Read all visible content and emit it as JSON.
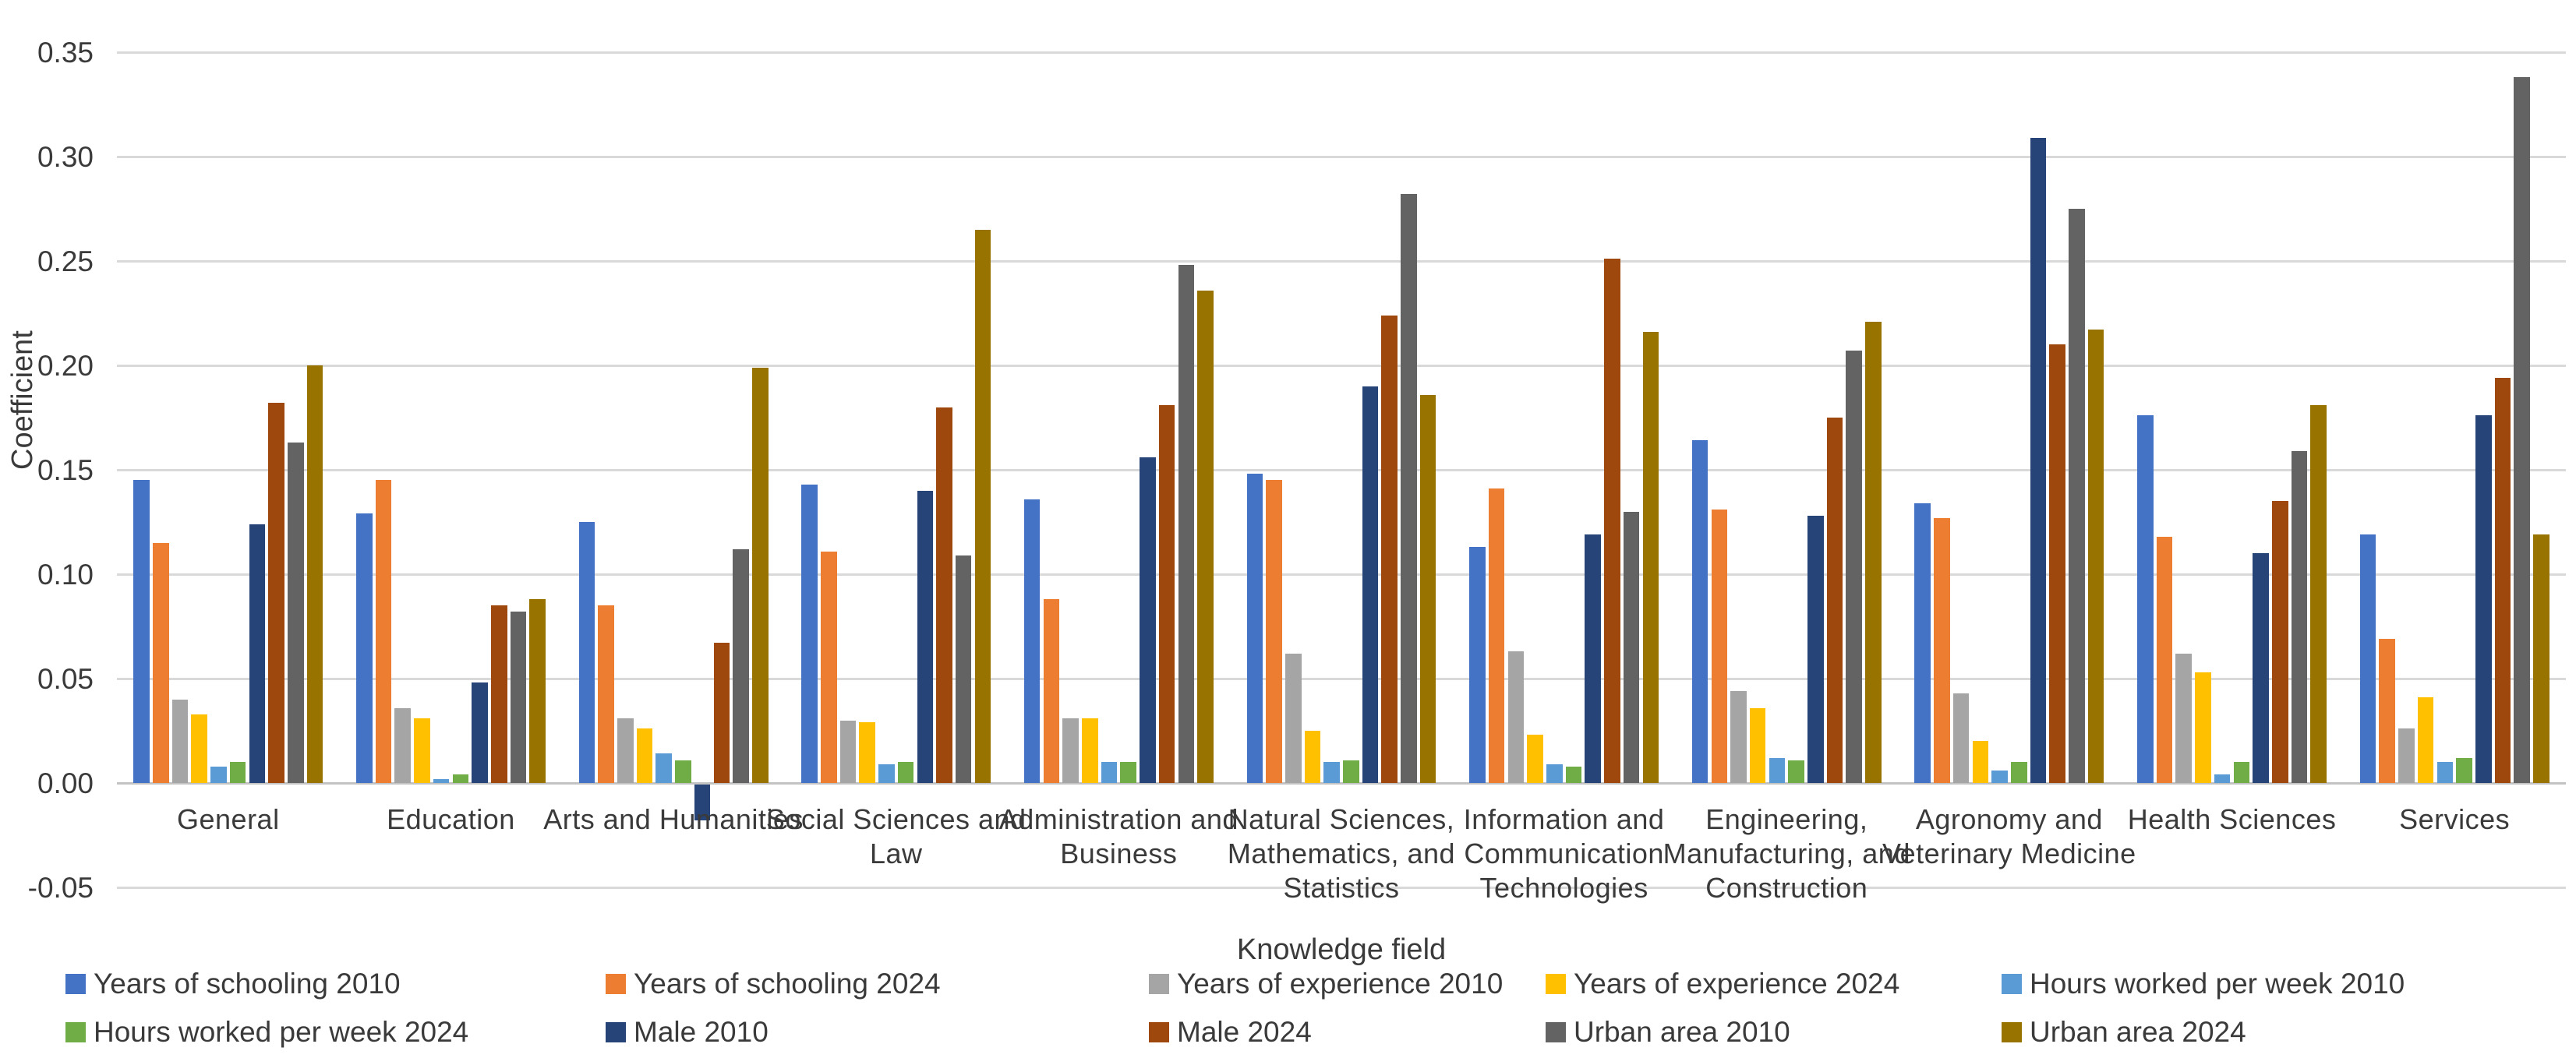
{
  "chart_data": {
    "type": "bar",
    "title": "",
    "xlabel": "Knowledge field",
    "ylabel": "Coefficient",
    "ylim": [
      -0.05,
      0.35
    ],
    "ytick_step": 0.05,
    "y_ticks": [
      "0.35",
      "0.30",
      "0.25",
      "0.20",
      "0.15",
      "0.10",
      "0.05",
      "0.00",
      "-0.05"
    ],
    "grid": true,
    "legend_position": "bottom",
    "categories": [
      "General",
      "Education",
      "Arts and Humanities",
      "Social Sciences and Law",
      "Administration and Business",
      "Natural Sciences, Mathematics, and Statistics",
      "Information and Communication Technologies",
      "Engineering, Manufacturing, and Construction",
      "Agronomy and Veterinary Medicine",
      "Health Sciences",
      "Services"
    ],
    "category_label_lines": [
      [
        "General"
      ],
      [
        "Education"
      ],
      [
        "Arts and Humanities"
      ],
      [
        "Social Sciences and",
        "Law"
      ],
      [
        "Administration and",
        "Business"
      ],
      [
        "Natural Sciences,",
        "Mathematics, and",
        "Statistics"
      ],
      [
        "Information and",
        "Communication",
        "Technologies"
      ],
      [
        "Engineering,",
        "Manufacturing, and",
        "Construction"
      ],
      [
        "Agronomy and",
        "Veterinary Medicine"
      ],
      [
        "Health Sciences"
      ],
      [
        "Services"
      ]
    ],
    "series": [
      {
        "name": "Years of schooling 2010",
        "color": "#4472C4",
        "values": [
          0.145,
          0.129,
          0.125,
          0.143,
          0.136,
          0.148,
          0.113,
          0.164,
          0.134,
          0.176,
          0.119
        ]
      },
      {
        "name": "Years of schooling 2024",
        "color": "#ED7D31",
        "values": [
          0.115,
          0.145,
          0.085,
          0.111,
          0.088,
          0.145,
          0.141,
          0.131,
          0.127,
          0.118,
          0.069
        ]
      },
      {
        "name": "Years of experience 2010",
        "color": "#A5A5A5",
        "values": [
          0.04,
          0.036,
          0.031,
          0.03,
          0.031,
          0.062,
          0.063,
          0.044,
          0.043,
          0.062,
          0.026
        ]
      },
      {
        "name": "Years of experience 2024",
        "color": "#FFC000",
        "values": [
          0.033,
          0.031,
          0.026,
          0.029,
          0.031,
          0.025,
          0.023,
          0.036,
          0.02,
          0.053,
          0.041
        ]
      },
      {
        "name": "Hours worked per week 2010",
        "color": "#5B9BD5",
        "values": [
          0.008,
          0.002,
          0.014,
          0.009,
          0.01,
          0.01,
          0.009,
          0.012,
          0.006,
          0.004,
          0.01
        ]
      },
      {
        "name": "Hours worked per week 2024",
        "color": "#70AD47",
        "values": [
          0.01,
          0.004,
          0.011,
          0.01,
          0.01,
          0.011,
          0.008,
          0.011,
          0.01,
          0.01,
          0.012
        ]
      },
      {
        "name": "Male 2010",
        "color": "#264478",
        "values": [
          0.124,
          0.048,
          -0.017,
          0.14,
          0.156,
          0.19,
          0.119,
          0.128,
          0.309,
          0.11,
          0.176
        ]
      },
      {
        "name": "Male 2024",
        "color": "#9E480E",
        "values": [
          0.182,
          0.085,
          0.067,
          0.18,
          0.181,
          0.224,
          0.251,
          0.175,
          0.21,
          0.135,
          0.194
        ]
      },
      {
        "name": "Urban area 2010",
        "color": "#636363",
        "values": [
          0.163,
          0.082,
          0.112,
          0.109,
          0.248,
          0.282,
          0.13,
          0.207,
          0.275,
          0.159,
          0.338
        ]
      },
      {
        "name": "Urban area 2024",
        "color": "#997300",
        "values": [
          0.2,
          0.088,
          0.199,
          0.265,
          0.236,
          0.186,
          0.216,
          0.221,
          0.217,
          0.181,
          0.119
        ]
      }
    ]
  }
}
